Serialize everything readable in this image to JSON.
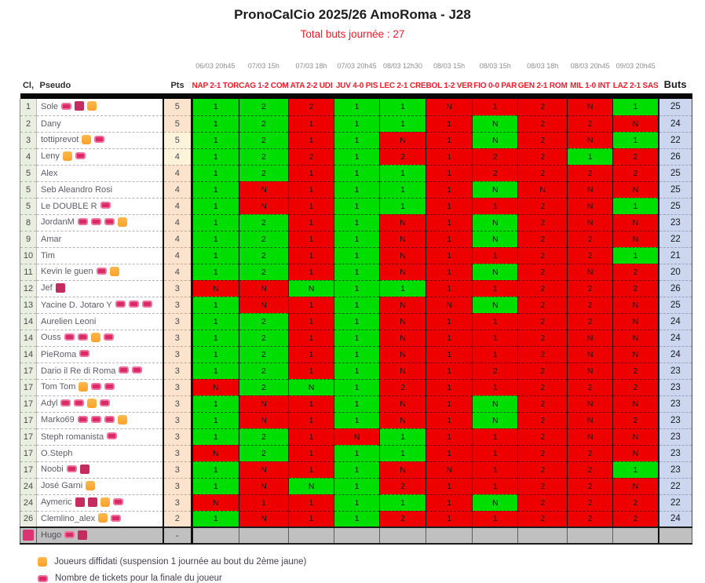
{
  "title": "PronoCalCio 2025/26 AmoRoma - J28",
  "subtitle": "Total buts journée : 27",
  "columns": {
    "rank": "Cl,",
    "pseudo": "Pseudo",
    "pts": "Pts",
    "buts": "Buts"
  },
  "matches": [
    {
      "date": "06/03 20h45",
      "label": "NAP 2-1 TOR",
      "result": "1"
    },
    {
      "date": "07/03 15h",
      "label": "CAG 1-2 COM",
      "result": "2"
    },
    {
      "date": "07/03 18h",
      "label": "ATA 2-2 UDI",
      "result": "N"
    },
    {
      "date": "07/03 20h45",
      "label": "JUV 4-0 PIS",
      "result": "1"
    },
    {
      "date": "08/03 12h30",
      "label": "LEC 2-1 CRE",
      "result": "1"
    },
    {
      "date": "08/03 15h",
      "label": "BOL 1-2 VER",
      "result": "2"
    },
    {
      "date": "08/03 15h",
      "label": "FIO 0-0 PAR",
      "result": "N"
    },
    {
      "date": "08/03 18h",
      "label": "GEN 2-1 ROM",
      "result": "1"
    },
    {
      "date": "08/03 20h45",
      "label": "MIL 1-0 INT",
      "result": "1"
    },
    {
      "date": "09/03 20h45",
      "label": "LAZ 2-1 SAS",
      "result": "1"
    }
  ],
  "rows": [
    {
      "rank": "1",
      "pseudo": "Sole",
      "badges": [
        "ticket",
        "crimson",
        "diffidato"
      ],
      "pts": "5",
      "preds": [
        "1",
        "2",
        "2",
        "1",
        "1",
        "N",
        "1",
        "2",
        "N",
        "1"
      ],
      "buts": "25"
    },
    {
      "rank": "2",
      "pseudo": "Dany",
      "badges": [],
      "pts": "5",
      "preds": [
        "1",
        "2",
        "1",
        "1",
        "1",
        "1",
        "N",
        "2",
        "2",
        "N"
      ],
      "buts": "24"
    },
    {
      "rank": "3",
      "pseudo": "tottiprevot",
      "badges": [
        "diffidato",
        "ticket"
      ],
      "pts": "5",
      "preds": [
        "1",
        "2",
        "1",
        "1",
        "N",
        "1",
        "N",
        "2",
        "N",
        "1"
      ],
      "buts": "22"
    },
    {
      "rank": "4",
      "pseudo": "Leny",
      "badges": [
        "diffidato",
        "ticket"
      ],
      "pts": "4",
      "preds": [
        "1",
        "2",
        "2",
        "1",
        "2",
        "1",
        "2",
        "2",
        "1",
        "2"
      ],
      "buts": "26"
    },
    {
      "rank": "5",
      "pseudo": "Alex",
      "badges": [],
      "pts": "4",
      "preds": [
        "1",
        "2",
        "1",
        "1",
        "1",
        "1",
        "2",
        "2",
        "2",
        "2"
      ],
      "buts": "25"
    },
    {
      "rank": "5",
      "pseudo": "Seb Aleandro Rosi",
      "badges": [],
      "pts": "4",
      "preds": [
        "1",
        "N",
        "1",
        "1",
        "1",
        "1",
        "N",
        "N",
        "N",
        "N"
      ],
      "buts": "25"
    },
    {
      "rank": "5",
      "pseudo": "Le DOUBLE R",
      "badges": [
        "ticket"
      ],
      "pts": "4",
      "preds": [
        "1",
        "N",
        "1",
        "1",
        "1",
        "1",
        "1",
        "2",
        "N",
        "1"
      ],
      "buts": "25"
    },
    {
      "rank": "8",
      "pseudo": "JordanM",
      "badges": [
        "ticket",
        "ticket",
        "ticket",
        "diffidato"
      ],
      "pts": "4",
      "preds": [
        "1",
        "2",
        "1",
        "1",
        "N",
        "1",
        "N",
        "2",
        "N",
        "N"
      ],
      "buts": "23"
    },
    {
      "rank": "9",
      "pseudo": "Amar",
      "badges": [],
      "pts": "4",
      "preds": [
        "1",
        "2",
        "1",
        "1",
        "N",
        "1",
        "N",
        "2",
        "2",
        "N"
      ],
      "buts": "22"
    },
    {
      "rank": "10",
      "pseudo": "Tim",
      "badges": [],
      "pts": "4",
      "preds": [
        "1",
        "2",
        "1",
        "1",
        "N",
        "1",
        "1",
        "2",
        "2",
        "1"
      ],
      "buts": "21"
    },
    {
      "rank": "11",
      "pseudo": "Kevin le guen",
      "badges": [
        "ticket",
        "diffidato"
      ],
      "pts": "4",
      "preds": [
        "1",
        "2",
        "1",
        "1",
        "N",
        "1",
        "N",
        "2",
        "N",
        "2"
      ],
      "buts": "20"
    },
    {
      "rank": "12",
      "pseudo": "Jef",
      "badges": [
        "crimson"
      ],
      "pts": "3",
      "preds": [
        "N",
        "N",
        "N",
        "1",
        "1",
        "1",
        "1",
        "2",
        "2",
        "2"
      ],
      "buts": "26"
    },
    {
      "rank": "13",
      "pseudo": "Yacine D. Jotaro Y",
      "badges": [
        "ticket",
        "ticket",
        "ticket"
      ],
      "pts": "3",
      "preds": [
        "1",
        "N",
        "1",
        "1",
        "N",
        "N",
        "N",
        "2",
        "2",
        "N"
      ],
      "buts": "25"
    },
    {
      "rank": "14",
      "pseudo": "Aurelien Leoni",
      "badges": [],
      "pts": "3",
      "preds": [
        "1",
        "2",
        "1",
        "1",
        "N",
        "1",
        "1",
        "2",
        "2",
        "N"
      ],
      "buts": "24"
    },
    {
      "rank": "14",
      "pseudo": "Ouss",
      "badges": [
        "ticket",
        "ticket",
        "diffidato",
        "ticket"
      ],
      "pts": "3",
      "preds": [
        "1",
        "2",
        "1",
        "1",
        "N",
        "1",
        "1",
        "2",
        "N",
        "N"
      ],
      "buts": "24"
    },
    {
      "rank": "14",
      "pseudo": "PieRoma",
      "badges": [
        "ticket"
      ],
      "pts": "3",
      "preds": [
        "1",
        "2",
        "1",
        "1",
        "N",
        "1",
        "1",
        "2",
        "N",
        "N"
      ],
      "buts": "24"
    },
    {
      "rank": "17",
      "pseudo": "Dario il Re di Roma",
      "badges": [
        "ticket",
        "ticket"
      ],
      "pts": "3",
      "preds": [
        "1",
        "2",
        "1",
        "1",
        "N",
        "1",
        "2",
        "2",
        "N",
        "2"
      ],
      "buts": "23"
    },
    {
      "rank": "17",
      "pseudo": "Tom Tom",
      "badges": [
        "diffidato",
        "ticket",
        "ticket"
      ],
      "pts": "3",
      "preds": [
        "N",
        "2",
        "N",
        "1",
        "2",
        "1",
        "1",
        "2",
        "2",
        "2"
      ],
      "buts": "23"
    },
    {
      "rank": "17",
      "pseudo": "Adyl",
      "badges": [
        "ticket",
        "ticket",
        "diffidato",
        "ticket"
      ],
      "pts": "3",
      "preds": [
        "1",
        "N",
        "1",
        "1",
        "N",
        "1",
        "N",
        "2",
        "N",
        "N"
      ],
      "buts": "23"
    },
    {
      "rank": "17",
      "pseudo": "Marko69",
      "badges": [
        "ticket",
        "ticket",
        "ticket",
        "diffidato"
      ],
      "pts": "3",
      "preds": [
        "1",
        "N",
        "1",
        "1",
        "N",
        "1",
        "N",
        "2",
        "N",
        "2"
      ],
      "buts": "23"
    },
    {
      "rank": "17",
      "pseudo": "Steph romanista",
      "badges": [
        "ticket"
      ],
      "pts": "3",
      "preds": [
        "1",
        "2",
        "1",
        "N",
        "1",
        "1",
        "1",
        "2",
        "N",
        "N"
      ],
      "buts": "23"
    },
    {
      "rank": "17",
      "pseudo": "O.Steph",
      "badges": [],
      "pts": "3",
      "preds": [
        "N",
        "2",
        "1",
        "1",
        "1",
        "1",
        "1",
        "2",
        "2",
        "N"
      ],
      "buts": "23"
    },
    {
      "rank": "17",
      "pseudo": "Noobi",
      "badges": [
        "ticket",
        "crimson"
      ],
      "pts": "3",
      "preds": [
        "1",
        "N",
        "1",
        "1",
        "N",
        "N",
        "1",
        "2",
        "2",
        "1"
      ],
      "buts": "23"
    },
    {
      "rank": "24",
      "pseudo": "José Garni",
      "badges": [
        "diffidato"
      ],
      "pts": "3",
      "preds": [
        "1",
        "N",
        "N",
        "1",
        "2",
        "1",
        "1",
        "2",
        "2",
        "N"
      ],
      "buts": "22"
    },
    {
      "rank": "24",
      "pseudo": "Aymeric",
      "badges": [
        "crimson",
        "crimson",
        "diffidato",
        "ticket"
      ],
      "pts": "3",
      "preds": [
        "N",
        "1",
        "1",
        "1",
        "1",
        "1",
        "N",
        "2",
        "2",
        "2"
      ],
      "buts": "22"
    },
    {
      "rank": "26",
      "pseudo": "Clemlino_alex",
      "badges": [
        "diffidato",
        "ticket"
      ],
      "pts": "2",
      "preds": [
        "1",
        "N",
        "1",
        "1",
        "2",
        "1",
        "1",
        "2",
        "2",
        "2"
      ],
      "buts": "24"
    }
  ],
  "special_row": {
    "rank_badge": "crimson",
    "pseudo": "Hugo",
    "badges": [
      "ticket",
      "crimson"
    ],
    "pts": "-",
    "preds": [
      "",
      "",
      "",
      "",
      "",
      "",
      "",
      "",
      "",
      ""
    ],
    "buts": ""
  },
  "legend": [
    {
      "badge": "diffidato",
      "text": "Joueurs diffidati (suspension 1 journée au bout du 2ème jaune)"
    },
    {
      "badge": "ticket",
      "text": "Nombre de tickets pour la finale du joueur"
    }
  ],
  "colors": {
    "correct": "#00dd00",
    "incorrect": "#ee0000",
    "buts_bg": "#ccd7ef",
    "pts_bg": "#fbe3cd",
    "rank_bg": "#e8efe1",
    "special_row_bg": "#c0c0c0",
    "accent_red": "#f21b2b",
    "ticket_pink": "#d92a66",
    "crimson": "#c22c5e",
    "diffidato_orange": "#f9a22b"
  }
}
